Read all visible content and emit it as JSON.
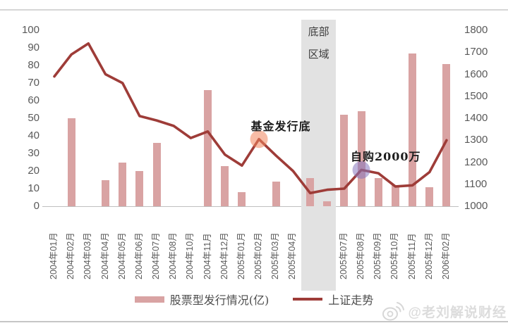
{
  "chart_data": {
    "type": "combo",
    "categories": [
      "2004年01月",
      "2004年02月",
      "2004年03月",
      "2004年04月",
      "2004年05月",
      "2004年06月",
      "2004年07月",
      "2004年08月",
      "2004年10月",
      "2004年11月",
      "2004年12月",
      "2005年01月",
      "2005年02月",
      "2005年03月",
      "2005年04月",
      "2005年05月",
      "2005年06月",
      "2005年07月",
      "2005年08月",
      "2005年09月",
      "2005年10月",
      "2005年11月",
      "2005年12月",
      "2006年02月"
    ],
    "series": [
      {
        "name": "股票型发行情况(亿)",
        "type": "bar",
        "axis": "left",
        "color": "#d9a3a3",
        "values": [
          null,
          50,
          null,
          15,
          25,
          20,
          36,
          null,
          null,
          66,
          23,
          8,
          null,
          14,
          null,
          16,
          3,
          52,
          54,
          16,
          12,
          87,
          11,
          81
        ]
      },
      {
        "name": "上证走势",
        "type": "line",
        "axis": "right",
        "color": "#9e3c38",
        "values": [
          1590,
          1690,
          1740,
          1600,
          1560,
          1410,
          1390,
          1365,
          1310,
          1340,
          1235,
          1185,
          1305,
          1230,
          1160,
          1060,
          1075,
          1080,
          1165,
          1150,
          1090,
          1095,
          1155,
          1300
        ]
      }
    ],
    "left_axis": {
      "min": 0,
      "max": 100,
      "step": 10
    },
    "right_axis": {
      "min": 1000,
      "max": 1800,
      "step": 100
    },
    "grid": false,
    "legend_position": "bottom",
    "highlight_band": {
      "label_line1": "底部",
      "label_line2": "区域",
      "categories": [
        "2005年05月",
        "2005年06月"
      ],
      "color": "#e2e2e2"
    },
    "annotations": [
      {
        "text": "基金发行底",
        "category": "2005年02月",
        "marker_color": "#f0855c"
      },
      {
        "text": "自购2000万",
        "category": "2005年08月",
        "marker_color": "#8677bd"
      }
    ]
  },
  "watermark": {
    "icon": "weibo-icon",
    "text": "@老刘解说财经"
  }
}
